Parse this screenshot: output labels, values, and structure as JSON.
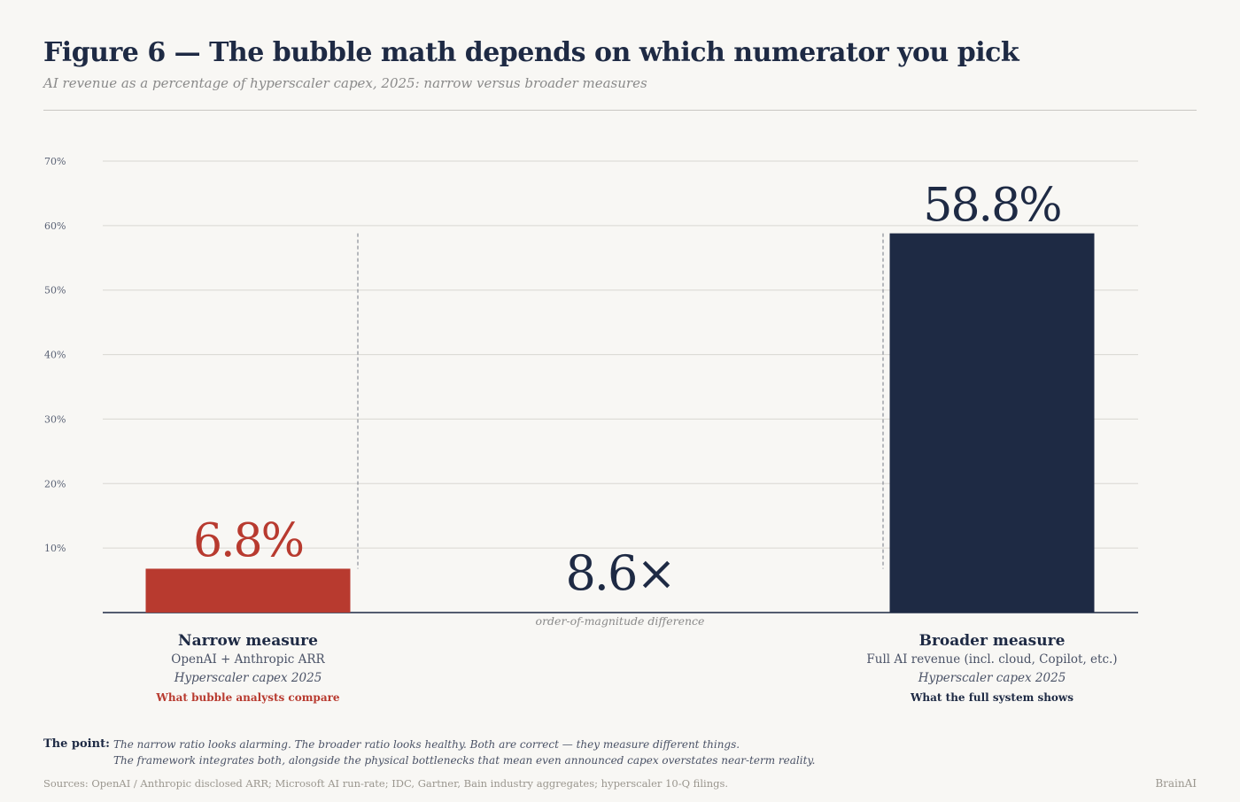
{
  "header": {
    "title": "Figure 6 — The bubble math depends on which numerator you pick",
    "subtitle": "AI revenue as a percentage of hyperscaler capex, 2025: narrow versus broader measures"
  },
  "chart_data": {
    "type": "bar",
    "categories": [
      "Narrow measure",
      "Broader measure"
    ],
    "values": [
      6.8,
      58.8
    ],
    "value_labels": [
      "6.8%",
      "58.8%"
    ],
    "colors": [
      "#b83a2f",
      "#1e2a44"
    ],
    "ylim": [
      0,
      70
    ],
    "yticks": [
      10,
      20,
      30,
      40,
      50,
      60,
      70
    ],
    "ytick_labels": [
      "10%",
      "20%",
      "30%",
      "40%",
      "50%",
      "60%",
      "70%"
    ],
    "grid": true,
    "annotation": {
      "value": "8.6×",
      "caption": "order-of-magnitude difference"
    },
    "category_details": [
      {
        "name": "Narrow measure",
        "numerator": "OpenAI + Anthropic ARR",
        "denominator": "Hyperscaler capex 2025",
        "tag": "What bubble analysts compare",
        "tag_color": "#b83a2f"
      },
      {
        "name": "Broader measure",
        "numerator": "Full AI revenue (incl. cloud, Copilot, etc.)",
        "denominator": "Hyperscaler capex 2025",
        "tag": "What the full system shows",
        "tag_color": "#1e2a44"
      }
    ]
  },
  "footer": {
    "point_label": "The point:",
    "point_line1": "The narrow ratio looks alarming. The broader ratio looks healthy. Both are correct — they measure different things.",
    "point_line2": "The framework integrates both, alongside the physical bottlenecks that mean even announced capex overstates near-term reality.",
    "sources": "Sources: OpenAI / Anthropic disclosed ARR; Microsoft AI run-rate; IDC, Gartner, Bain industry aggregates; hyperscaler 10-Q filings.",
    "brand": "BrainAI"
  }
}
